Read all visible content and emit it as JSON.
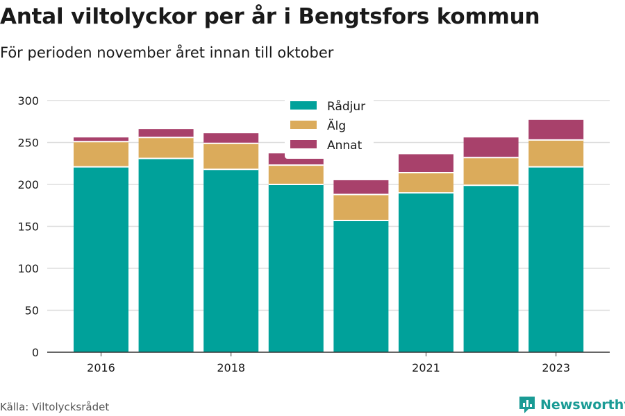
{
  "title": "Antal viltolyckor per år i Bengtsfors kommun",
  "subtitle": "För perioden november året innan till oktober",
  "source": "Källa: Viltolycksrådet",
  "brand": {
    "name": "Newsworthy",
    "icon": "newsworthy-logo-icon",
    "color": "#1a9b95"
  },
  "colors": {
    "grid": "#dddddd",
    "axis": "#333333",
    "separator": "#ffffff"
  },
  "chart_data": {
    "type": "bar",
    "stacked": true,
    "categories": [
      "2016",
      "2017",
      "2018",
      "2019",
      "2020",
      "2021",
      "2022",
      "2023"
    ],
    "x_tick_labels": [
      "2016",
      "",
      "2018",
      "",
      "",
      "2021",
      "",
      "2023"
    ],
    "series": [
      {
        "name": "Rådjur",
        "color": "#00a19a",
        "values": [
          221,
          231,
          218,
          200,
          157,
          190,
          199,
          221
        ]
      },
      {
        "name": "Älg",
        "color": "#dbab5b",
        "values": [
          30,
          25,
          31,
          23,
          31,
          24,
          33,
          32
        ]
      },
      {
        "name": "Annat",
        "color": "#a8416b",
        "values": [
          5,
          10,
          12,
          14,
          17,
          22,
          24,
          24
        ]
      }
    ],
    "ylim": [
      0,
      300
    ],
    "yticks": [
      0,
      50,
      100,
      150,
      200,
      250,
      300
    ],
    "grid": true,
    "legend_placement": "top-center"
  }
}
